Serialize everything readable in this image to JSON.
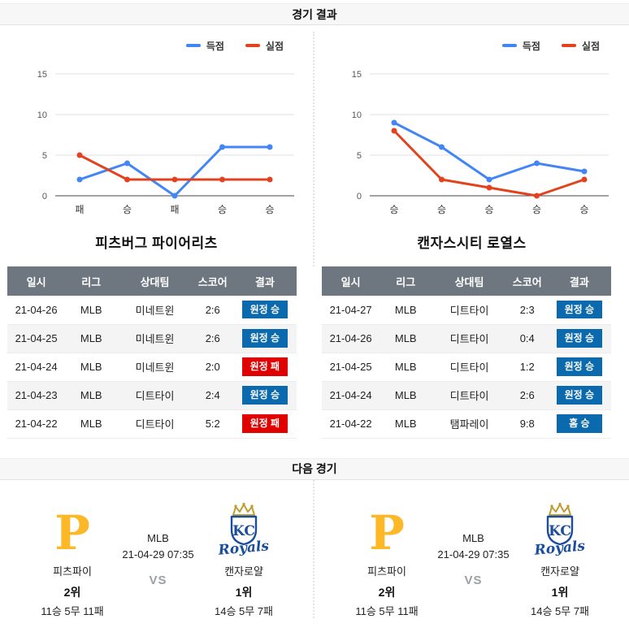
{
  "page": {
    "results_header": "경기 결과",
    "next_header": "다음 경기"
  },
  "colors": {
    "score_line": "#4285f4",
    "concede_line": "#e2431e",
    "win_badge": "#0b6aad",
    "loss_badge": "#e00000",
    "table_header_bg": "#6e7780",
    "pirates_gold": "#fdb827",
    "royals_blue": "#1a4e9d",
    "crown_gold": "#bf9b30"
  },
  "chart_data": [
    {
      "type": "line",
      "team": "피츠버그 파이어리츠",
      "categories": [
        "패",
        "승",
        "패",
        "승",
        "승"
      ],
      "series": [
        {
          "name": "득점",
          "color": "#4285f4",
          "values": [
            2,
            4,
            0,
            6,
            6
          ]
        },
        {
          "name": "실점",
          "color": "#e2431e",
          "values": [
            5,
            2,
            2,
            2,
            2
          ]
        }
      ],
      "ylim": [
        0,
        15
      ],
      "yticks": [
        0,
        5,
        10,
        15
      ],
      "grid": true,
      "legend_position": "top-right"
    },
    {
      "type": "line",
      "team": "캔자스시티 로열스",
      "categories": [
        "승",
        "승",
        "승",
        "승",
        "승"
      ],
      "series": [
        {
          "name": "득점",
          "color": "#4285f4",
          "values": [
            9,
            6,
            2,
            4,
            3
          ]
        },
        {
          "name": "실점",
          "color": "#e2431e",
          "values": [
            8,
            2,
            1,
            0,
            2
          ]
        }
      ],
      "ylim": [
        0,
        15
      ],
      "yticks": [
        0,
        5,
        10,
        15
      ],
      "grid": true,
      "legend_position": "top-right"
    }
  ],
  "teams": [
    {
      "title": "피츠버그 파이어리츠",
      "table": {
        "headers": [
          "일시",
          "리그",
          "상대팀",
          "스코어",
          "결과"
        ],
        "rows": [
          {
            "date": "21-04-26",
            "league": "MLB",
            "opponent": "미네트윈",
            "score": "2:6",
            "result": "원정 승",
            "result_type": "win"
          },
          {
            "date": "21-04-25",
            "league": "MLB",
            "opponent": "미네트윈",
            "score": "2:6",
            "result": "원정 승",
            "result_type": "win"
          },
          {
            "date": "21-04-24",
            "league": "MLB",
            "opponent": "미네트윈",
            "score": "2:0",
            "result": "원정 패",
            "result_type": "loss"
          },
          {
            "date": "21-04-23",
            "league": "MLB",
            "opponent": "디트타이",
            "score": "2:4",
            "result": "원정 승",
            "result_type": "win"
          },
          {
            "date": "21-04-22",
            "league": "MLB",
            "opponent": "디트타이",
            "score": "5:2",
            "result": "원정 패",
            "result_type": "loss"
          }
        ]
      }
    },
    {
      "title": "캔자스시티 로열스",
      "table": {
        "headers": [
          "일시",
          "리그",
          "상대팀",
          "스코어",
          "결과"
        ],
        "rows": [
          {
            "date": "21-04-27",
            "league": "MLB",
            "opponent": "디트타이",
            "score": "2:3",
            "result": "원정 승",
            "result_type": "win"
          },
          {
            "date": "21-04-26",
            "league": "MLB",
            "opponent": "디트타이",
            "score": "0:4",
            "result": "원정 승",
            "result_type": "win"
          },
          {
            "date": "21-04-25",
            "league": "MLB",
            "opponent": "디트타이",
            "score": "1:2",
            "result": "원정 승",
            "result_type": "win"
          },
          {
            "date": "21-04-24",
            "league": "MLB",
            "opponent": "디트타이",
            "score": "2:6",
            "result": "원정 승",
            "result_type": "win"
          },
          {
            "date": "21-04-22",
            "league": "MLB",
            "opponent": "탬파레이",
            "score": "9:8",
            "result": "홈 승",
            "result_type": "win"
          }
        ]
      }
    }
  ],
  "next_match": {
    "cards": [
      {
        "home": {
          "name": "피츠파이",
          "rank": "2위",
          "record": "11승 5무 11패",
          "logo": "pirates",
          "logo_letter": "P"
        },
        "league": "MLB",
        "datetime": "21-04-29 07:35",
        "vs_label": "VS",
        "away": {
          "name": "캔자로얄",
          "rank": "1위",
          "record": "14승 5무 7패",
          "logo": "royals",
          "logo_kc": "KC",
          "logo_script": "Royals"
        }
      },
      {
        "home": {
          "name": "피츠파이",
          "rank": "2위",
          "record": "11승 5무 11패",
          "logo": "pirates",
          "logo_letter": "P"
        },
        "league": "MLB",
        "datetime": "21-04-29 07:35",
        "vs_label": "VS",
        "away": {
          "name": "캔자로얄",
          "rank": "1위",
          "record": "14승 5무 7패",
          "logo": "royals",
          "logo_kc": "KC",
          "logo_script": "Royals"
        }
      }
    ]
  }
}
